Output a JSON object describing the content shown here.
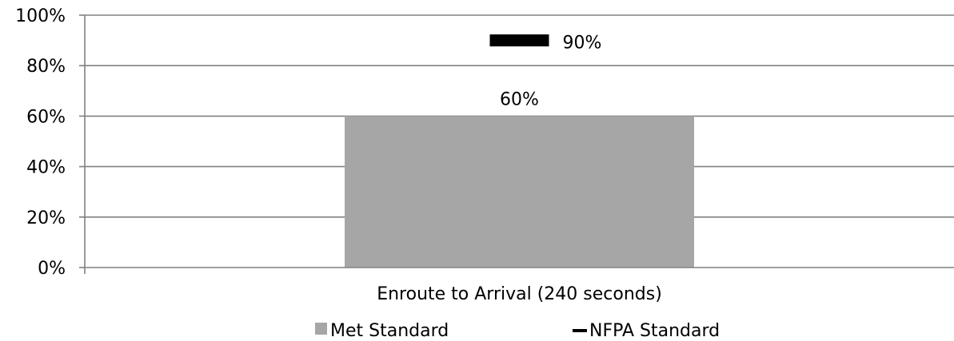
{
  "chart_data": {
    "type": "bar",
    "title": "",
    "xlabel": "",
    "ylabel": "",
    "categories": [
      "Enroute to Arrival (240 seconds)"
    ],
    "series": [
      {
        "name": "Met Standard",
        "type": "bar",
        "values": [
          60
        ],
        "color": "#a6a6a6"
      },
      {
        "name": "NFPA Standard",
        "type": "marker",
        "values": [
          90
        ],
        "color": "#000000"
      }
    ],
    "data_labels": [
      "60%",
      "90%"
    ],
    "ylim": [
      0,
      100
    ],
    "yticks": [
      0,
      20,
      40,
      60,
      80,
      100
    ],
    "ytick_labels": [
      "0%",
      "20%",
      "40%",
      "60%",
      "80%",
      "100%"
    ],
    "grid": true,
    "legend": "bottom",
    "gridline_color": "#808080"
  }
}
